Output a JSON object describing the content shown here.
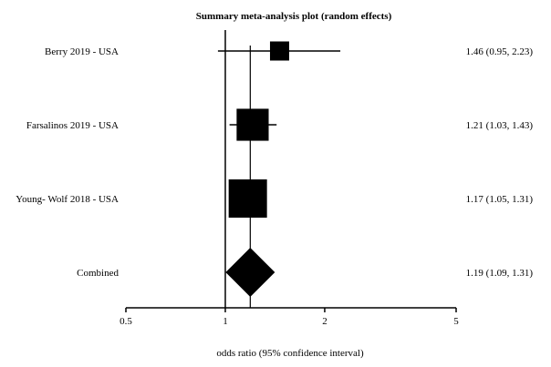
{
  "chart_data": {
    "type": "forest",
    "title": "Summary meta-analysis plot (random effects)",
    "xlabel": "odds ratio (95% confidence interval)",
    "x_scale": "log",
    "xlim": [
      0.5,
      5
    ],
    "x_ticks": [
      {
        "value": 0.5,
        "label": "0.5"
      },
      {
        "value": 1,
        "label": "1"
      },
      {
        "value": 2,
        "label": "2"
      },
      {
        "value": 5,
        "label": "5"
      }
    ],
    "reference_line": 1,
    "studies": [
      {
        "label": "Berry 2019 - USA",
        "or": 1.46,
        "lower": 0.95,
        "upper": 2.23,
        "ci_text": "1.46 (0.95, 2.23)",
        "weight": 0.25
      },
      {
        "label": "Farsalinos 2019 - USA",
        "or": 1.21,
        "lower": 1.03,
        "upper": 1.43,
        "ci_text": "1.21 (1.03, 1.43)",
        "weight": 0.7
      },
      {
        "label": "Young- Wolf 2018 - USA",
        "or": 1.17,
        "lower": 1.05,
        "upper": 1.31,
        "ci_text": "1.17 (1.05, 1.31)",
        "weight": 1.0
      }
    ],
    "combined": {
      "label": "Combined",
      "or": 1.19,
      "lower": 1.09,
      "upper": 1.31,
      "ci_text": "1.19 (1.09, 1.31)"
    },
    "colors": {
      "marker": "#000000",
      "line": "#000000"
    }
  }
}
